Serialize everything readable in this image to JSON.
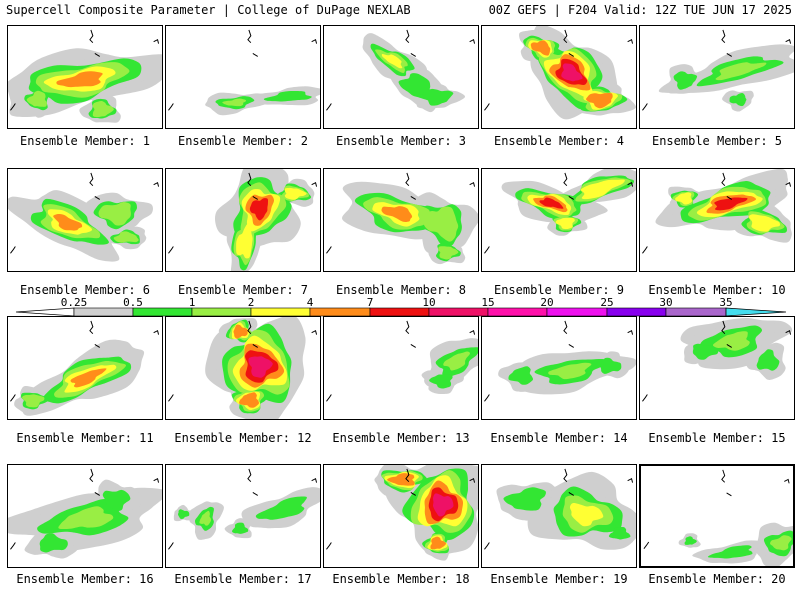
{
  "header": {
    "left": "Supercell Composite Parameter | College of DuPage NEXLAB",
    "right": "00Z GEFS | F204 Valid: 12Z TUE JUN 17 2025"
  },
  "member_label_prefix": "Ensemble Member:",
  "colors": {
    "0.25": "#cfcfcf",
    "0.5": "#33e633",
    "1": "#99ee44",
    "2": "#ffff33",
    "4": "#ff8c1a",
    "7": "#ee1111",
    "10": "#ee1166",
    "15": "#ff11aa",
    "20": "#ee11ee",
    "25": "#8800ee",
    "30": "#aa66cc",
    "35": "#44ddee"
  },
  "color_scale": {
    "ticks": [
      "0.25",
      "0.5",
      "1",
      "2",
      "4",
      "7",
      "10",
      "15",
      "20",
      "25",
      "30",
      "35"
    ]
  },
  "selected_member": 20,
  "members": [
    {
      "id": 1,
      "label": "Ensemble Member: 1",
      "max_level": "4"
    },
    {
      "id": 2,
      "label": "Ensemble Member: 2",
      "max_level": "1"
    },
    {
      "id": 3,
      "label": "Ensemble Member: 3",
      "max_level": "2"
    },
    {
      "id": 4,
      "label": "Ensemble Member: 4",
      "max_level": "10"
    },
    {
      "id": 5,
      "label": "Ensemble Member: 5",
      "max_level": "1"
    },
    {
      "id": 6,
      "label": "Ensemble Member: 6",
      "max_level": "4"
    },
    {
      "id": 7,
      "label": "Ensemble Member: 7",
      "max_level": "7"
    },
    {
      "id": 8,
      "label": "Ensemble Member: 8",
      "max_level": "4"
    },
    {
      "id": 9,
      "label": "Ensemble Member: 9",
      "max_level": "7"
    },
    {
      "id": 10,
      "label": "Ensemble Member: 10",
      "max_level": "7"
    },
    {
      "id": 11,
      "label": "Ensemble Member: 11",
      "max_level": "4"
    },
    {
      "id": 12,
      "label": "Ensemble Member: 12",
      "max_level": "10"
    },
    {
      "id": 13,
      "label": "Ensemble Member: 13",
      "max_level": "1"
    },
    {
      "id": 14,
      "label": "Ensemble Member: 14",
      "max_level": "1"
    },
    {
      "id": 15,
      "label": "Ensemble Member: 15",
      "max_level": "1"
    },
    {
      "id": 16,
      "label": "Ensemble Member: 16",
      "max_level": "1"
    },
    {
      "id": 17,
      "label": "Ensemble Member: 17",
      "max_level": "1"
    },
    {
      "id": 18,
      "label": "Ensemble Member: 18",
      "max_level": "10"
    },
    {
      "id": 19,
      "label": "Ensemble Member: 19",
      "max_level": "2"
    },
    {
      "id": 20,
      "label": "Ensemble Member: 20",
      "max_level": "1"
    }
  ]
}
